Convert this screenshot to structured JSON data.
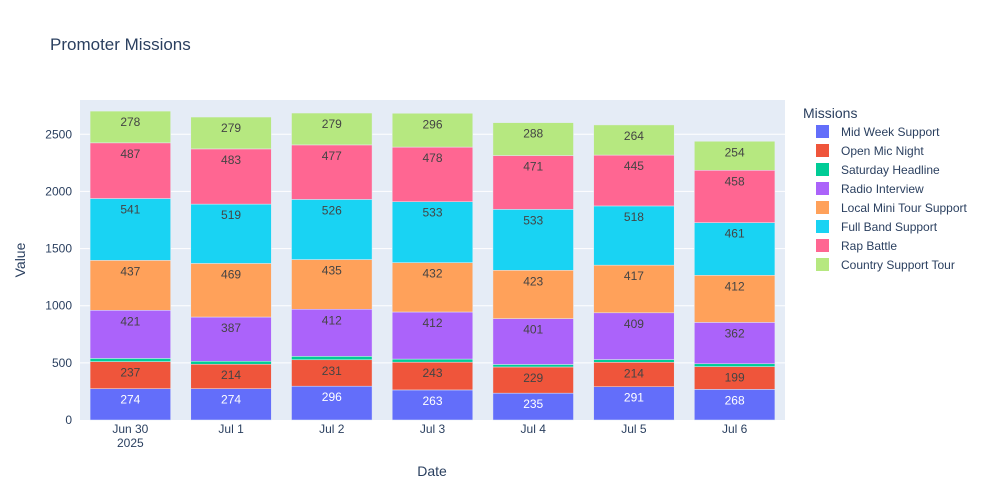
{
  "chart_data": {
    "type": "bar",
    "stacked": true,
    "title": "Promoter Missions",
    "xlabel": "Date",
    "ylabel": "Value",
    "categories": [
      "Jun 30\n2025",
      "Jul 1",
      "Jul 2",
      "Jul 3",
      "Jul 4",
      "Jul 5",
      "Jul 6"
    ],
    "ylim": [
      0,
      2800
    ],
    "yticks": [
      0,
      500,
      1000,
      1500,
      2000,
      2500
    ],
    "grid": true,
    "legend_title": "Missions",
    "legend_position": "right",
    "series": [
      {
        "name": "Mid Week Support",
        "color": "#636efa",
        "label_color": "#ffffff",
        "values": [
          274,
          274,
          296,
          263,
          235,
          291,
          268
        ]
      },
      {
        "name": "Open Mic Night",
        "color": "#ef553b",
        "label_color": "#444444",
        "values": [
          237,
          214,
          231,
          243,
          229,
          214,
          199
        ]
      },
      {
        "name": "Saturday Headline",
        "color": "#00cc96",
        "label_color": "#444444",
        "values": [
          28,
          26,
          30,
          27,
          22,
          24,
          25
        ]
      },
      {
        "name": "Radio Interview",
        "color": "#ab63fa",
        "label_color": "#444444",
        "values": [
          421,
          387,
          412,
          412,
          401,
          409,
          362
        ]
      },
      {
        "name": "Local Mini Tour Support",
        "color": "#ffa15a",
        "label_color": "#444444",
        "values": [
          437,
          469,
          435,
          432,
          423,
          417,
          412
        ]
      },
      {
        "name": "Full Band Support",
        "color": "#19d3f3",
        "label_color": "#444444",
        "values": [
          541,
          519,
          526,
          533,
          533,
          518,
          461
        ]
      },
      {
        "name": "Rap Battle",
        "color": "#ff6692",
        "label_color": "#444444",
        "values": [
          487,
          483,
          477,
          478,
          471,
          445,
          458
        ]
      },
      {
        "name": "Country Support Tour",
        "color": "#b6e880",
        "label_color": "#444444",
        "values": [
          278,
          279,
          279,
          296,
          288,
          264,
          254
        ]
      }
    ]
  },
  "colors": {
    "plot_bg": "#e5ecf6",
    "grid": "#ffffff",
    "text": "#2a3f5f"
  }
}
